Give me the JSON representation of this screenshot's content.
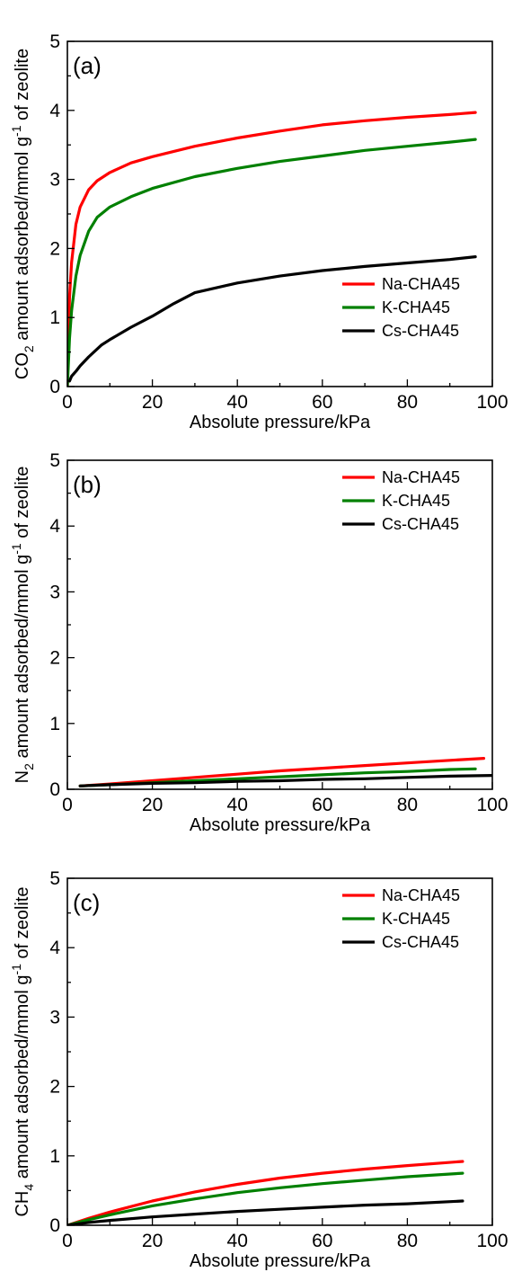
{
  "chart_data": [
    {
      "type": "line",
      "panel_label": "(a)",
      "xlabel": "Absolute pressure/kPa",
      "ylabel_parts": [
        "CO",
        "2",
        " amount adsorbed/mmol g",
        "-1",
        " of zeolite"
      ],
      "xlim": [
        0,
        100
      ],
      "ylim": [
        0,
        5
      ],
      "xticks": [
        "0",
        "20",
        "40",
        "60",
        "80",
        "100"
      ],
      "yticks": [
        "0",
        "1",
        "2",
        "3",
        "4",
        "5"
      ],
      "legend_position": "bottom-right",
      "series": [
        {
          "name": "Na-CHA45",
          "color": "#ff0000",
          "x": [
            0,
            0.5,
            1,
            2,
            3,
            5,
            7,
            10,
            15,
            20,
            30,
            40,
            50,
            60,
            70,
            80,
            90,
            96
          ],
          "y": [
            0,
            1.3,
            1.8,
            2.35,
            2.6,
            2.85,
            2.98,
            3.1,
            3.24,
            3.33,
            3.48,
            3.6,
            3.7,
            3.79,
            3.85,
            3.9,
            3.94,
            3.97
          ]
        },
        {
          "name": "K-CHA45",
          "color": "#008000",
          "x": [
            0,
            0.5,
            1,
            2,
            3,
            5,
            7,
            10,
            15,
            20,
            30,
            40,
            50,
            60,
            70,
            80,
            90,
            96
          ],
          "y": [
            0,
            0.7,
            1.1,
            1.6,
            1.9,
            2.25,
            2.45,
            2.6,
            2.75,
            2.87,
            3.04,
            3.16,
            3.26,
            3.34,
            3.42,
            3.48,
            3.54,
            3.58
          ]
        },
        {
          "name": "Cs-CHA45",
          "color": "#000000",
          "x": [
            0.5,
            1,
            2,
            3,
            5,
            8,
            10,
            15,
            20,
            25,
            30,
            40,
            50,
            60,
            70,
            80,
            90,
            96
          ],
          "y": [
            0.08,
            0.15,
            0.22,
            0.3,
            0.43,
            0.6,
            0.68,
            0.86,
            1.02,
            1.2,
            1.36,
            1.5,
            1.6,
            1.68,
            1.74,
            1.79,
            1.84,
            1.88
          ]
        }
      ]
    },
    {
      "type": "line",
      "panel_label": "(b)",
      "xlabel": "Absolute pressure/kPa",
      "ylabel_parts": [
        "N",
        "2",
        " amount adsorbed/mmol g",
        "-1",
        " of zeolite"
      ],
      "xlim": [
        0,
        100
      ],
      "ylim": [
        0,
        5
      ],
      "xticks": [
        "0",
        "20",
        "40",
        "60",
        "80",
        "100"
      ],
      "yticks": [
        "0",
        "1",
        "2",
        "3",
        "4",
        "5"
      ],
      "legend_position": "top-right",
      "series": [
        {
          "name": "Na-CHA45",
          "color": "#ff0000",
          "x": [
            3,
            10,
            20,
            30,
            40,
            50,
            60,
            70,
            80,
            90,
            98
          ],
          "y": [
            0.05,
            0.08,
            0.13,
            0.18,
            0.23,
            0.28,
            0.32,
            0.36,
            0.4,
            0.44,
            0.47
          ]
        },
        {
          "name": "K-CHA45",
          "color": "#008000",
          "x": [
            3,
            10,
            20,
            30,
            40,
            50,
            60,
            70,
            80,
            90,
            96
          ],
          "y": [
            0.05,
            0.07,
            0.1,
            0.13,
            0.16,
            0.19,
            0.22,
            0.25,
            0.27,
            0.3,
            0.31
          ]
        },
        {
          "name": "Cs-CHA45",
          "color": "#000000",
          "x": [
            3,
            10,
            20,
            30,
            40,
            50,
            60,
            70,
            80,
            90,
            100
          ],
          "y": [
            0.05,
            0.07,
            0.09,
            0.1,
            0.12,
            0.13,
            0.15,
            0.16,
            0.18,
            0.2,
            0.21
          ]
        }
      ]
    },
    {
      "type": "line",
      "panel_label": "(c)",
      "xlabel": "Absolute pressure/kPa",
      "ylabel_parts": [
        "CH",
        "4",
        " amount adsorbed/mmol g",
        "-1",
        " of zeolite"
      ],
      "xlim": [
        0,
        100
      ],
      "ylim": [
        0,
        5
      ],
      "xticks": [
        "0",
        "20",
        "40",
        "60",
        "80",
        "100"
      ],
      "yticks": [
        "0",
        "1",
        "2",
        "3",
        "4",
        "5"
      ],
      "legend_position": "top-right",
      "series": [
        {
          "name": "Na-CHA45",
          "color": "#ff0000",
          "x": [
            0,
            5,
            10,
            20,
            30,
            40,
            50,
            60,
            70,
            80,
            93
          ],
          "y": [
            0,
            0.1,
            0.19,
            0.35,
            0.48,
            0.59,
            0.68,
            0.75,
            0.81,
            0.86,
            0.92
          ]
        },
        {
          "name": "K-CHA45",
          "color": "#008000",
          "x": [
            0,
            5,
            10,
            20,
            30,
            40,
            50,
            60,
            70,
            80,
            93
          ],
          "y": [
            0,
            0.08,
            0.15,
            0.28,
            0.38,
            0.47,
            0.54,
            0.6,
            0.65,
            0.7,
            0.75
          ]
        },
        {
          "name": "Cs-CHA45",
          "color": "#000000",
          "x": [
            0,
            5,
            10,
            20,
            30,
            40,
            50,
            60,
            70,
            80,
            93
          ],
          "y": [
            0,
            0.04,
            0.07,
            0.12,
            0.16,
            0.2,
            0.23,
            0.26,
            0.29,
            0.31,
            0.35
          ]
        }
      ]
    }
  ]
}
